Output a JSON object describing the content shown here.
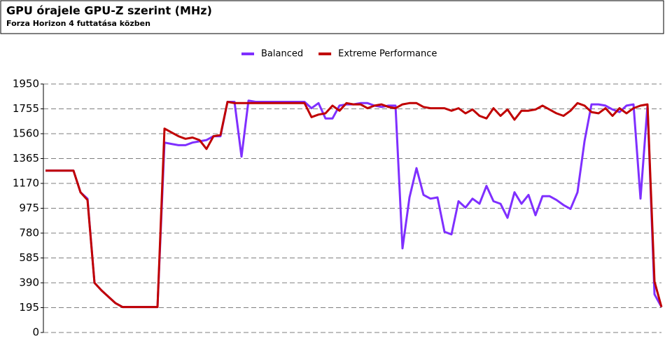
{
  "chart_data": {
    "type": "line",
    "title": "GPU órajele GPU-Z szerint (MHz)",
    "subtitle": "Forza Horizon 4 futtatása közben",
    "ylim": [
      0,
      1950
    ],
    "yticks": [
      0,
      195,
      390,
      585,
      780,
      975,
      1170,
      1365,
      1560,
      1755,
      1950
    ],
    "grid": true,
    "legend": "top",
    "series": [
      {
        "name": "Balanced",
        "color": "#7f2fff",
        "values": [
          1270,
          1270,
          1270,
          1270,
          1270,
          1100,
          1050,
          390,
          330,
          280,
          230,
          200,
          200,
          200,
          200,
          200,
          200,
          1490,
          1480,
          1470,
          1470,
          1490,
          1500,
          1510,
          1540,
          1540,
          1810,
          1810,
          1380,
          1820,
          1810,
          1810,
          1810,
          1810,
          1810,
          1810,
          1810,
          1810,
          1760,
          1800,
          1680,
          1680,
          1780,
          1790,
          1790,
          1800,
          1800,
          1780,
          1770,
          1780,
          1780,
          660,
          1060,
          1290,
          1080,
          1050,
          1060,
          790,
          770,
          1030,
          980,
          1050,
          1010,
          1150,
          1030,
          1010,
          900,
          1100,
          1010,
          1080,
          920,
          1070,
          1070,
          1040,
          1000,
          970,
          1100,
          1500,
          1790,
          1790,
          1780,
          1750,
          1730,
          1780,
          1790,
          1050,
          1780,
          300,
          200
        ]
      },
      {
        "name": "Extreme Performance",
        "color": "#c00000",
        "values": [
          1270,
          1270,
          1270,
          1270,
          1270,
          1100,
          1040,
          390,
          330,
          280,
          230,
          200,
          200,
          200,
          200,
          200,
          200,
          1600,
          1570,
          1540,
          1520,
          1530,
          1510,
          1440,
          1540,
          1550,
          1810,
          1800,
          1800,
          1800,
          1800,
          1800,
          1800,
          1800,
          1800,
          1800,
          1800,
          1800,
          1690,
          1710,
          1720,
          1780,
          1740,
          1800,
          1790,
          1790,
          1760,
          1780,
          1790,
          1770,
          1760,
          1790,
          1800,
          1800,
          1770,
          1760,
          1760,
          1760,
          1740,
          1760,
          1720,
          1750,
          1700,
          1680,
          1760,
          1700,
          1750,
          1670,
          1740,
          1740,
          1750,
          1780,
          1750,
          1720,
          1700,
          1740,
          1800,
          1780,
          1730,
          1720,
          1760,
          1700,
          1760,
          1720,
          1760,
          1780,
          1790,
          400,
          200
        ]
      }
    ]
  }
}
